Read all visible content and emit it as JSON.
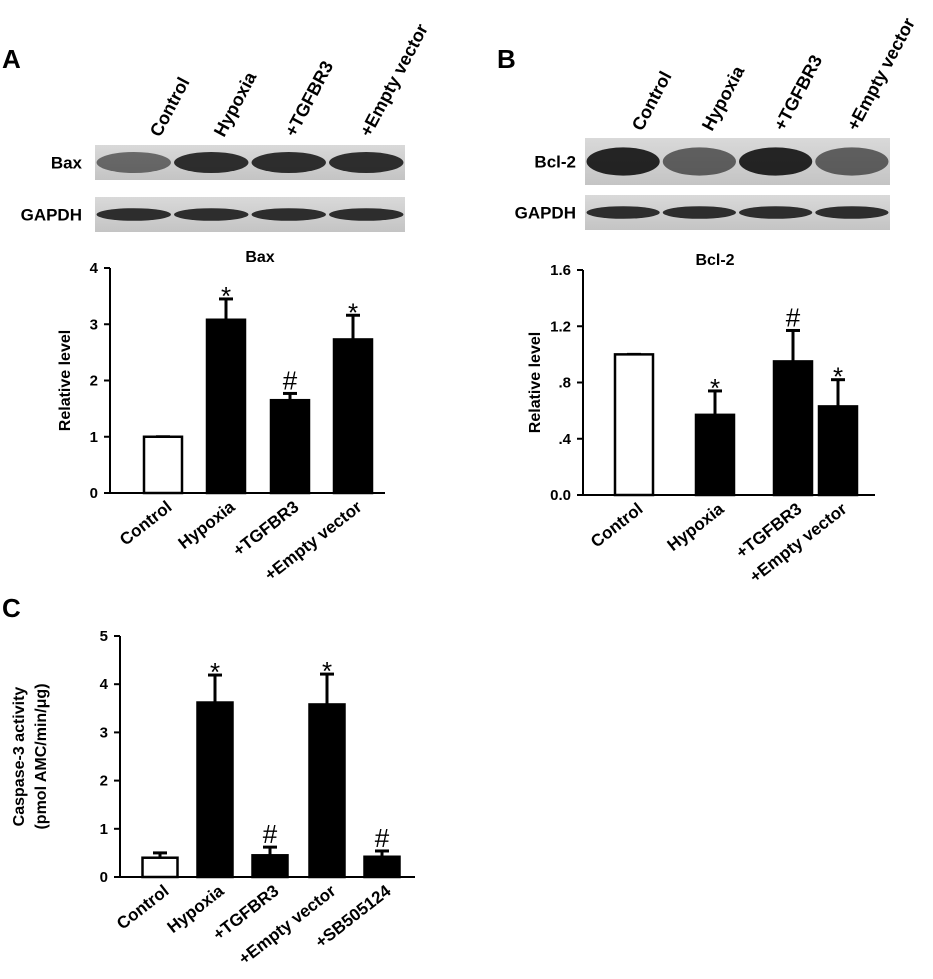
{
  "chart_data": [
    {
      "type": "bar",
      "panel": "A",
      "title": "Bax",
      "ylabel": "Relative level",
      "blots": {
        "lanes": [
          "Control",
          "Hypoxia",
          "+TGFBR3",
          "+Empty vector"
        ],
        "rows": [
          "Bax",
          "GAPDH"
        ]
      },
      "categories": [
        "Control",
        "Hypoxia",
        "+TGFBR3",
        "+Empty vector"
      ],
      "values": [
        1.0,
        3.08,
        1.65,
        2.73
      ],
      "errors": [
        0,
        0.37,
        0.12,
        0.43
      ],
      "colors": [
        "#ffffff",
        "#000000",
        "#000000",
        "#000000"
      ],
      "annotations": [
        null,
        "*",
        "#",
        "*"
      ],
      "ylim": [
        0,
        4
      ],
      "yticks": [
        0,
        1,
        2,
        3,
        4
      ]
    },
    {
      "type": "bar",
      "panel": "B",
      "title": "Bcl-2",
      "ylabel": "Relative level",
      "blots": {
        "lanes": [
          "Control",
          "Hypoxia",
          "+TGFBR3",
          "+Empty vector"
        ],
        "rows": [
          "Bcl-2",
          "GAPDH"
        ]
      },
      "categories": [
        "Control",
        "Hypoxia",
        "+TGFBR3",
        "+Empty vector"
      ],
      "values": [
        1.0,
        0.57,
        0.95,
        0.63
      ],
      "errors": [
        0,
        0.17,
        0.22,
        0.19
      ],
      "colors": [
        "#ffffff",
        "#000000",
        "#000000",
        "#000000"
      ],
      "annotations": [
        null,
        "*",
        "#",
        "*"
      ],
      "ylim": [
        0,
        1.6
      ],
      "yticks": [
        {
          "value": 0,
          "label": "0.0"
        },
        {
          "value": 0.4,
          "label": ".4"
        },
        {
          "value": 0.8,
          "label": ".8"
        },
        1.2,
        1.6
      ]
    },
    {
      "type": "bar",
      "panel": "C",
      "ylabel": [
        "Caspase-3 activity",
        "(pmol AMC/min/μg)"
      ],
      "categories": [
        "Control",
        "Hypoxia",
        "+TGFBR3",
        "+Empty vector",
        "+SB505124"
      ],
      "values": [
        0.4,
        3.62,
        0.45,
        3.58,
        0.42
      ],
      "errors": [
        0.1,
        0.57,
        0.17,
        0.63,
        0.12
      ],
      "colors": [
        "#ffffff",
        "#000000",
        "#000000",
        "#000000",
        "#000000"
      ],
      "annotations": [
        null,
        "*",
        "#",
        "*",
        "#"
      ],
      "ylim": [
        0,
        5
      ],
      "yticks": [
        0,
        1,
        2,
        3,
        4,
        5
      ]
    }
  ]
}
